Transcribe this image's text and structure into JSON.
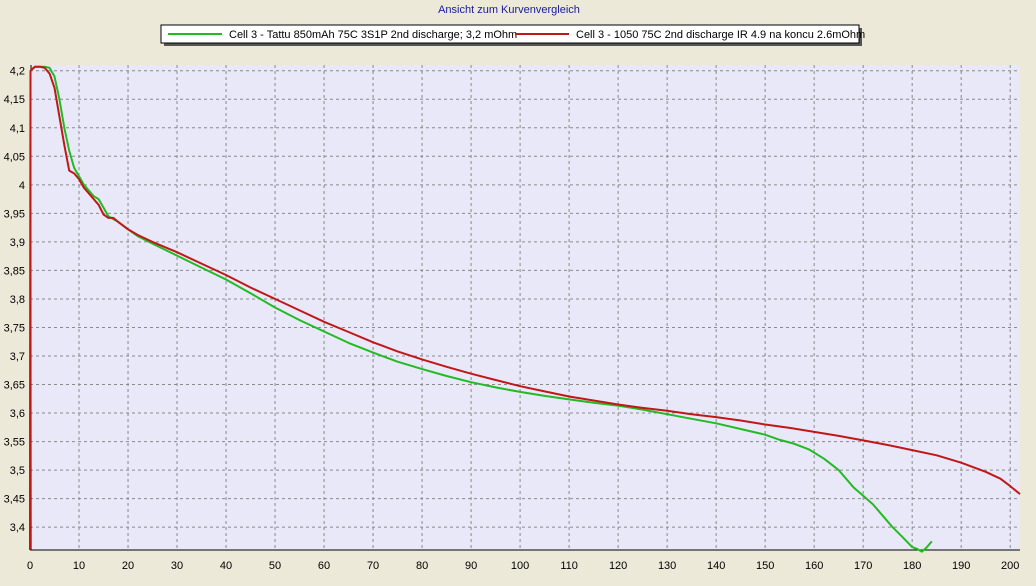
{
  "chart_data": {
    "type": "line",
    "title": "Ansicht zum Kurvenvergleich",
    "xlabel": "",
    "ylabel": "",
    "xlim": [
      0,
      202
    ],
    "ylim": [
      3.36,
      4.21
    ],
    "grid": true,
    "legend_position": "top-center",
    "x_ticks": [
      "0",
      "10",
      "20",
      "30",
      "40",
      "50",
      "60",
      "70",
      "80",
      "90",
      "100",
      "110",
      "120",
      "130",
      "140",
      "150",
      "160",
      "170",
      "180",
      "190",
      "200"
    ],
    "y_ticks": [
      "4,2",
      "4,15",
      "4,1",
      "4,05",
      "4",
      "3,95",
      "3,9",
      "3,85",
      "3,8",
      "3,75",
      "3,7",
      "3,65",
      "3,6",
      "3,55",
      "3,5",
      "3,45",
      "3,4"
    ],
    "series": [
      {
        "name": "Cell 3 - Tattu 850mAh 75C 3S1P 2nd discharge; 3,2 mOhm",
        "color": "#22bb22",
        "points": [
          [
            0,
            3.36
          ],
          [
            0.1,
            4.2
          ],
          [
            1,
            4.207
          ],
          [
            3,
            4.207
          ],
          [
            4,
            4.205
          ],
          [
            5,
            4.19
          ],
          [
            6,
            4.15
          ],
          [
            7,
            4.1
          ],
          [
            8,
            4.06
          ],
          [
            9,
            4.03
          ],
          [
            10,
            4.015
          ],
          [
            11,
            4.0
          ],
          [
            12,
            3.99
          ],
          [
            13,
            3.98
          ],
          [
            14,
            3.975
          ],
          [
            15,
            3.96
          ],
          [
            16,
            3.945
          ],
          [
            17,
            3.94
          ],
          [
            18,
            3.935
          ],
          [
            20,
            3.922
          ],
          [
            22,
            3.91
          ],
          [
            25,
            3.897
          ],
          [
            30,
            3.876
          ],
          [
            35,
            3.855
          ],
          [
            40,
            3.834
          ],
          [
            45,
            3.81
          ],
          [
            50,
            3.785
          ],
          [
            55,
            3.763
          ],
          [
            60,
            3.743
          ],
          [
            65,
            3.723
          ],
          [
            70,
            3.706
          ],
          [
            75,
            3.69
          ],
          [
            80,
            3.677
          ],
          [
            85,
            3.665
          ],
          [
            90,
            3.654
          ],
          [
            95,
            3.645
          ],
          [
            100,
            3.637
          ],
          [
            105,
            3.63
          ],
          [
            110,
            3.624
          ],
          [
            115,
            3.618
          ],
          [
            120,
            3.613
          ],
          [
            125,
            3.606
          ],
          [
            130,
            3.598
          ],
          [
            135,
            3.59
          ],
          [
            140,
            3.582
          ],
          [
            145,
            3.572
          ],
          [
            150,
            3.562
          ],
          [
            153,
            3.553
          ],
          [
            156,
            3.546
          ],
          [
            159,
            3.536
          ],
          [
            162,
            3.52
          ],
          [
            165,
            3.5
          ],
          [
            168,
            3.47
          ],
          [
            170,
            3.455
          ],
          [
            172,
            3.44
          ],
          [
            174,
            3.42
          ],
          [
            176,
            3.4
          ],
          [
            178,
            3.383
          ],
          [
            180,
            3.365
          ],
          [
            181,
            3.362
          ],
          [
            182,
            3.357
          ],
          [
            183,
            3.365
          ],
          [
            184,
            3.375
          ]
        ]
      },
      {
        "name": "Cell 3 - 1050 75C 2nd discharge IR 4.9 na koncu 2.6mOhm",
        "color": "#c01818",
        "points": [
          [
            0,
            3.36
          ],
          [
            0.1,
            4.2
          ],
          [
            1,
            4.207
          ],
          [
            2,
            4.207
          ],
          [
            3,
            4.205
          ],
          [
            4,
            4.195
          ],
          [
            5,
            4.17
          ],
          [
            6,
            4.12
          ],
          [
            7,
            4.07
          ],
          [
            8,
            4.025
          ],
          [
            9,
            4.02
          ],
          [
            10,
            4.01
          ],
          [
            11,
            3.995
          ],
          [
            12,
            3.985
          ],
          [
            13,
            3.975
          ],
          [
            14,
            3.965
          ],
          [
            15,
            3.948
          ],
          [
            16,
            3.942
          ],
          [
            17,
            3.942
          ],
          [
            18,
            3.935
          ],
          [
            20,
            3.922
          ],
          [
            22,
            3.912
          ],
          [
            25,
            3.9
          ],
          [
            30,
            3.882
          ],
          [
            35,
            3.862
          ],
          [
            40,
            3.842
          ],
          [
            45,
            3.82
          ],
          [
            50,
            3.8
          ],
          [
            55,
            3.78
          ],
          [
            60,
            3.76
          ],
          [
            65,
            3.742
          ],
          [
            70,
            3.724
          ],
          [
            75,
            3.708
          ],
          [
            80,
            3.694
          ],
          [
            85,
            3.681
          ],
          [
            90,
            3.669
          ],
          [
            95,
            3.658
          ],
          [
            100,
            3.647
          ],
          [
            105,
            3.638
          ],
          [
            110,
            3.629
          ],
          [
            115,
            3.622
          ],
          [
            120,
            3.615
          ],
          [
            125,
            3.609
          ],
          [
            130,
            3.604
          ],
          [
            135,
            3.598
          ],
          [
            140,
            3.593
          ],
          [
            145,
            3.587
          ],
          [
            150,
            3.58
          ],
          [
            155,
            3.574
          ],
          [
            160,
            3.567
          ],
          [
            165,
            3.56
          ],
          [
            170,
            3.552
          ],
          [
            175,
            3.544
          ],
          [
            180,
            3.535
          ],
          [
            185,
            3.526
          ],
          [
            190,
            3.513
          ],
          [
            195,
            3.497
          ],
          [
            198,
            3.485
          ],
          [
            200,
            3.472
          ],
          [
            201,
            3.465
          ],
          [
            202,
            3.458
          ]
        ]
      }
    ]
  }
}
